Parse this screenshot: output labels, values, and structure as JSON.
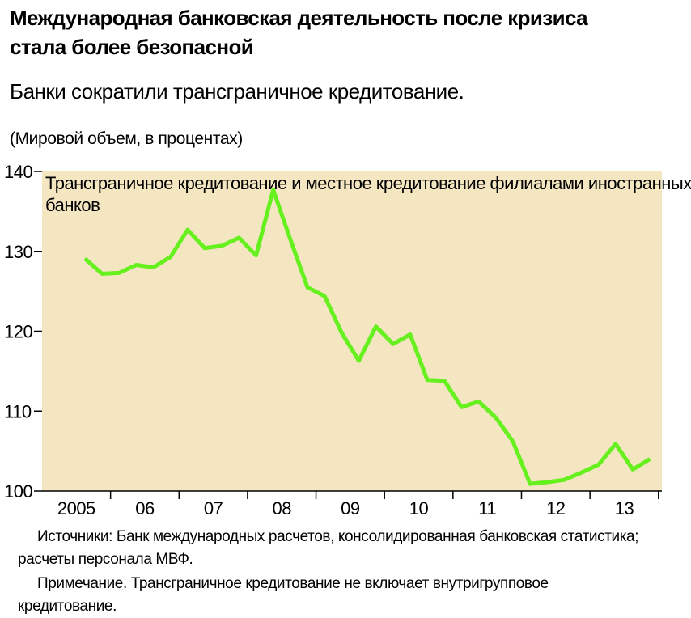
{
  "chart_data": {
    "type": "line",
    "title": "Международная банковская деятельность после кризиса стала более безопасной",
    "subtitle": "Банки сократили трансграничное кредитование.",
    "y_label": "(Мировой объем, в процентах)",
    "annotation": "Трансграничное кредитование и местное кредитование филиалами иностранных банков",
    "sources": "Источники: Банк международных расчетов, консолидированная банковская статистика; расчеты персонала МВФ.",
    "note": "Примечание. Трансграничное кредитование не включает внутригрупповое кредитование.",
    "x": [
      2005.125,
      2005.375,
      2005.625,
      2005.875,
      2006.125,
      2006.375,
      2006.625,
      2006.875,
      2007.125,
      2007.375,
      2007.625,
      2007.875,
      2008.125,
      2008.375,
      2008.625,
      2008.875,
      2009.125,
      2009.375,
      2009.625,
      2009.875,
      2010.125,
      2010.375,
      2010.625,
      2010.875,
      2011.125,
      2011.375,
      2011.625,
      2011.875,
      2012.125,
      2012.375,
      2012.625,
      2012.875,
      2013.125,
      2013.375
    ],
    "series": [
      {
        "color": "#66f01e",
        "values": [
          129.1,
          127.2,
          127.3,
          128.3,
          128.0,
          129.3,
          132.7,
          130.4,
          130.7,
          131.7,
          129.5,
          137.7,
          131.5,
          125.5,
          124.4,
          119.8,
          116.3,
          120.6,
          118.4,
          119.6,
          113.9,
          113.8,
          110.5,
          111.2,
          109.2,
          106.2,
          100.9,
          101.1,
          101.4,
          102.3,
          103.3,
          105.9,
          102.7,
          104.0
        ]
      }
    ],
    "xlim": [
      2004.5,
      2013.55
    ],
    "xticks": [
      2005.5,
      2006.5,
      2007.5,
      2008.5,
      2009.5,
      2010.5,
      2011.5,
      2012.5,
      2013.5
    ],
    "xlabels": [
      {
        "value": 2005,
        "label": "2005"
      },
      {
        "value": 2006,
        "label": "06"
      },
      {
        "value": 2007,
        "label": "07"
      },
      {
        "value": 2008,
        "label": "08"
      },
      {
        "value": 2009,
        "label": "09"
      },
      {
        "value": 2010,
        "label": "10"
      },
      {
        "value": 2011,
        "label": "11"
      },
      {
        "value": 2012,
        "label": "12"
      },
      {
        "value": 2013,
        "label": "13"
      }
    ],
    "ylim": [
      100,
      140
    ],
    "yticks": [
      100,
      110,
      120,
      130,
      140
    ],
    "background": "#f3e6c1"
  }
}
